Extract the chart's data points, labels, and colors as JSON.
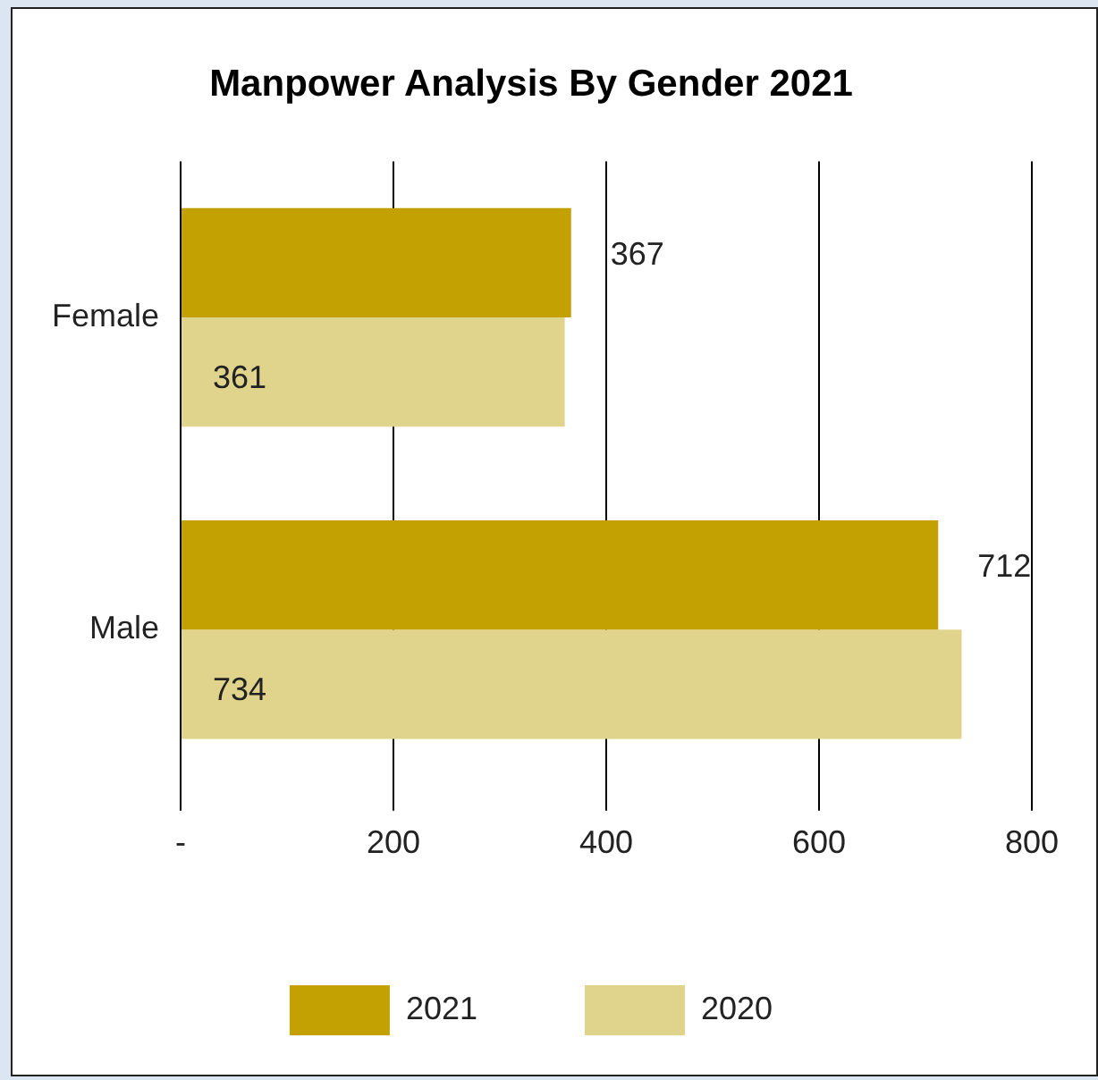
{
  "chart_data": {
    "type": "bar",
    "orientation": "horizontal",
    "title": "Manpower Analysis By Gender 2021",
    "categories": [
      "Female",
      "Male"
    ],
    "series": [
      {
        "name": "2021",
        "color": "#c4a102",
        "values": [
          367,
          712
        ]
      },
      {
        "name": "2020",
        "color": "#e0d48d",
        "values": [
          361,
          734
        ]
      }
    ],
    "xlim": [
      0,
      800
    ],
    "xticks": [
      {
        "value": 0,
        "label": "-"
      },
      200,
      400,
      600,
      800
    ],
    "grid": "x",
    "legend": "bottom",
    "data_labels": true
  }
}
